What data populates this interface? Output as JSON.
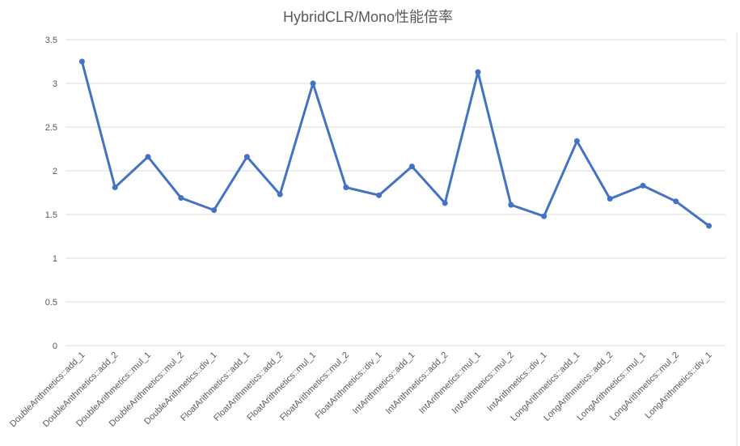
{
  "chart_data": {
    "type": "line",
    "title": "HybridCLR/Mono性能倍率",
    "xlabel": "",
    "ylabel": "",
    "ylim": [
      0,
      3.5
    ],
    "yticks": [
      "0",
      "0.5",
      "1",
      "1.5",
      "2",
      "2.5",
      "3",
      "3.5"
    ],
    "grid": true,
    "legend": "none",
    "color": "#4472c4",
    "categories": [
      "DoubleArithmetics::add_1",
      "DoubleArithmetics::add_2",
      "DoubleArithmetics::mul_1",
      "DoubleArithmetics::mul_2",
      "DoubleArithmetics::div_1",
      "FloatArithmetics::add_1",
      "FloatArithmetics::add_2",
      "FloatArithmetics::mul_1",
      "FloatArithmetics::mul_2",
      "FloatArithmetics::div_1",
      "IntArithmetics::add_1",
      "IntArithmetics::add_2",
      "IntArithmetics::mul_1",
      "IntArithmetics::mul_2",
      "IntArithmetics::div_1",
      "LongArithmetics::add_1",
      "LongArithmetics::add_2",
      "LongArithmetics::mul_1",
      "LongArithmetics::mul_2",
      "LongArithmetics::div_1"
    ],
    "values": [
      3.25,
      1.81,
      2.16,
      1.69,
      1.55,
      2.16,
      1.73,
      3.0,
      1.81,
      1.72,
      2.05,
      1.63,
      3.13,
      1.61,
      1.48,
      2.34,
      1.68,
      1.83,
      1.65,
      1.37
    ]
  }
}
